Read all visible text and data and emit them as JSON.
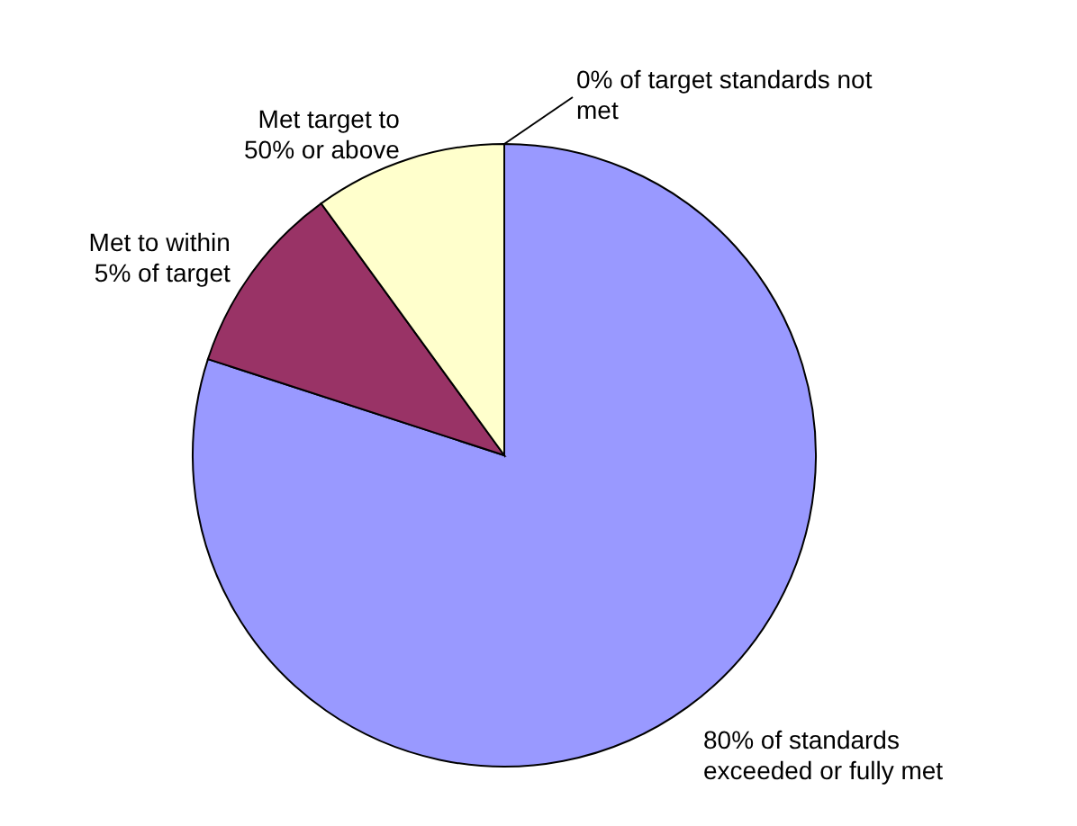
{
  "chart_data": {
    "type": "pie",
    "categories": [
      "80% of standards exceeded or fully met",
      "Met to within 5% of target",
      "Met target to 50% or above",
      "0% of target standards not met"
    ],
    "values": [
      80,
      10,
      10,
      0
    ],
    "colors": [
      "#9999ff",
      "#993366",
      "#ffffcc",
      "#ccffff"
    ]
  }
}
